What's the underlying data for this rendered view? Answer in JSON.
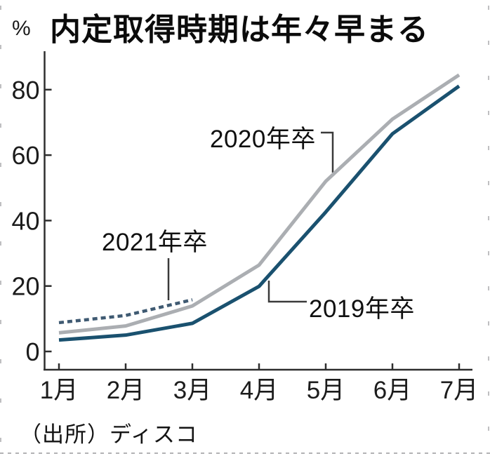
{
  "title": "内定取得時期は年々早まる",
  "y_unit": "%",
  "source": "（出所）ディスコ",
  "colors": {
    "line_2019": "#1a516f",
    "line_2020": "#abaeb2",
    "line_2021": "#3f5a72",
    "axis": "#2e2e2e",
    "connector": "#3a3a3a"
  },
  "chart_data": {
    "type": "line",
    "title": "内定取得時期は年々早まる",
    "xlabel": "",
    "ylabel": "%",
    "categories": [
      "1月",
      "2月",
      "3月",
      "4月",
      "5月",
      "6月",
      "7月"
    ],
    "yticks": [
      0,
      20,
      40,
      60,
      80
    ],
    "ylim": [
      0,
      88
    ],
    "grid": false,
    "legend_position": "inline-annotations",
    "series": [
      {
        "name": "2021年卒",
        "style": "dashed",
        "color": "#3f5a72",
        "values": [
          8.8,
          11.0,
          15.8,
          null,
          null,
          null,
          null
        ]
      },
      {
        "name": "2020年卒",
        "style": "solid",
        "color": "#abaeb2",
        "values": [
          5.7,
          7.8,
          13.9,
          26.4,
          52.0,
          71.0,
          84.5
        ]
      },
      {
        "name": "2019年卒",
        "style": "solid",
        "color": "#1a516f",
        "values": [
          3.5,
          5.0,
          8.6,
          19.9,
          42.6,
          66.5,
          81.1
        ]
      }
    ],
    "annotations": [
      {
        "label": "2021年卒",
        "points_to": "2021年卒 line near 3月"
      },
      {
        "label": "2020年卒",
        "points_to": "2020年卒 line near 5月"
      },
      {
        "label": "2019年卒",
        "points_to": "2019年卒 line near 4月"
      }
    ]
  }
}
